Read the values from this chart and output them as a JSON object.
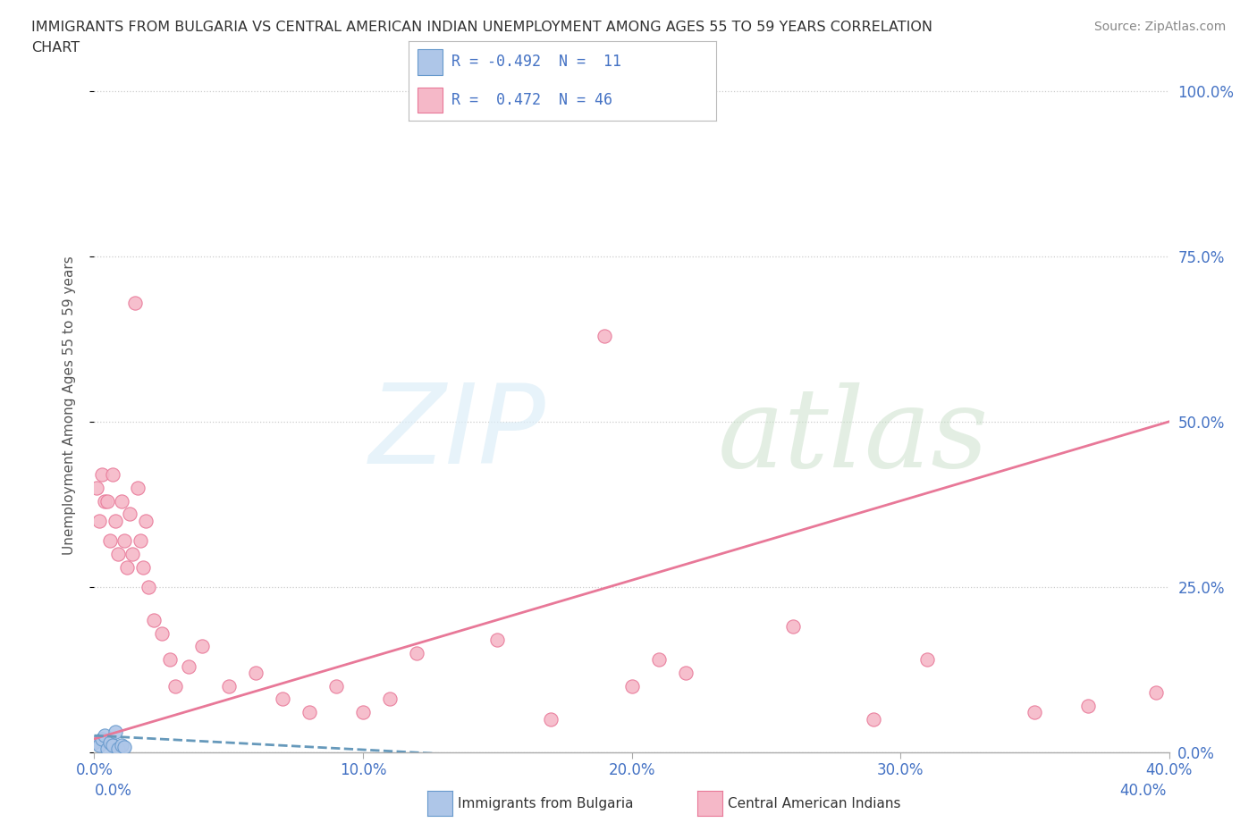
{
  "title_line1": "IMMIGRANTS FROM BULGARIA VS CENTRAL AMERICAN INDIAN UNEMPLOYMENT AMONG AGES 55 TO 59 YEARS CORRELATION",
  "title_line2": "CHART",
  "source": "Source: ZipAtlas.com",
  "ylabel": "Unemployment Among Ages 55 to 59 years",
  "xlim": [
    0.0,
    0.4
  ],
  "ylim": [
    0.0,
    1.05
  ],
  "yticks": [
    0.0,
    0.25,
    0.5,
    0.75,
    1.0
  ],
  "ytick_labels": [
    "0.0%",
    "25.0%",
    "50.0%",
    "75.0%",
    "100.0%"
  ],
  "xticks": [
    0.0,
    0.1,
    0.2,
    0.3,
    0.4
  ],
  "xtick_labels": [
    "0.0%",
    "10.0%",
    "20.0%",
    "30.0%",
    "40.0%"
  ],
  "background_color": "#ffffff",
  "bulgaria_color": "#aec6e8",
  "bulgaria_edge": "#6699cc",
  "central_color": "#f5b8c8",
  "central_edge": "#e87898",
  "trend_bulgaria_color": "#6699bb",
  "trend_central_color": "#e87898",
  "tick_label_color": "#4472c4",
  "axis_label_color": "#555555",
  "grid_color": "#cccccc",
  "legend_r1": "R = -0.492  N =  11",
  "legend_r2": "R =  0.472  N = 46",
  "bulgaria_x": [
    0.0,
    0.002,
    0.003,
    0.004,
    0.005,
    0.006,
    0.007,
    0.008,
    0.009,
    0.01,
    0.011
  ],
  "bulgaria_y": [
    0.015,
    0.01,
    0.02,
    0.025,
    0.005,
    0.015,
    0.01,
    0.03,
    0.005,
    0.01,
    0.008
  ],
  "central_x": [
    0.001,
    0.002,
    0.003,
    0.004,
    0.005,
    0.006,
    0.007,
    0.008,
    0.009,
    0.01,
    0.011,
    0.012,
    0.013,
    0.014,
    0.015,
    0.016,
    0.017,
    0.018,
    0.019,
    0.02,
    0.022,
    0.025,
    0.028,
    0.03,
    0.035,
    0.04,
    0.05,
    0.06,
    0.07,
    0.08,
    0.09,
    0.1,
    0.11,
    0.12,
    0.15,
    0.17,
    0.19,
    0.2,
    0.21,
    0.22,
    0.26,
    0.29,
    0.31,
    0.35,
    0.37,
    0.395
  ],
  "central_y": [
    0.4,
    0.35,
    0.42,
    0.38,
    0.38,
    0.32,
    0.42,
    0.35,
    0.3,
    0.38,
    0.32,
    0.28,
    0.36,
    0.3,
    0.68,
    0.4,
    0.32,
    0.28,
    0.35,
    0.25,
    0.2,
    0.18,
    0.14,
    0.1,
    0.13,
    0.16,
    0.1,
    0.12,
    0.08,
    0.06,
    0.1,
    0.06,
    0.08,
    0.15,
    0.17,
    0.05,
    0.63,
    0.1,
    0.14,
    0.12,
    0.19,
    0.05,
    0.14,
    0.06,
    0.07,
    0.09
  ],
  "central_trend_x0": 0.0,
  "central_trend_x1": 0.4,
  "central_trend_y0": 0.02,
  "central_trend_y1": 0.5,
  "bulgaria_trend_x0": 0.0,
  "bulgaria_trend_x1": 0.14,
  "bulgaria_trend_y0": 0.025,
  "bulgaria_trend_y1": -0.005
}
